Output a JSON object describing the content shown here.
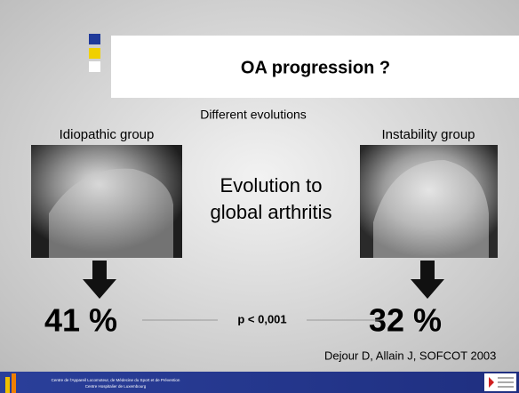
{
  "slide": {
    "title": "OA progression ?",
    "subtitle": "Different evolutions",
    "left": {
      "label": "Idiopathic group",
      "result": "41 %"
    },
    "right": {
      "label": "Instability group",
      "result": "32 %"
    },
    "center": {
      "lines": [
        "Evolution to",
        "global arthritis"
      ]
    },
    "significance": "p < 0,001",
    "citation": "Dejour D, Allain J, SOFCOT 2003",
    "footer": {
      "lines": [
        "Centre de l'Appareil Locomoteur, de Médecine du Sport et de Prévention",
        "Centre Hospitalier de Luxembourg"
      ]
    }
  }
}
